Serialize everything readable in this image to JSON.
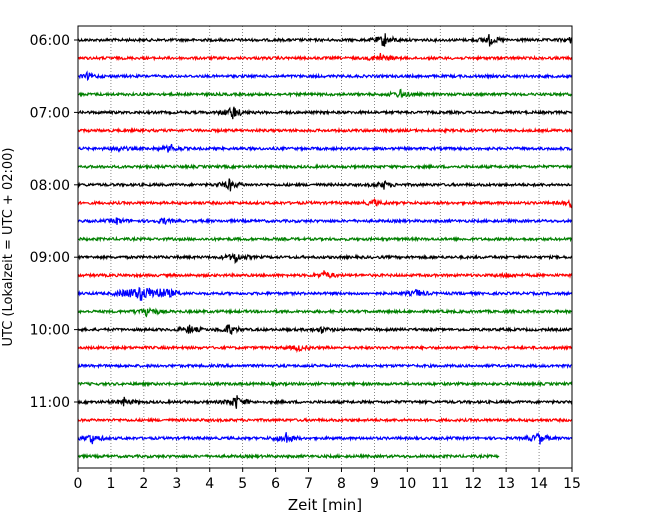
{
  "chart_data": {
    "type": "line",
    "title": "",
    "xlabel": "Zeit  [min]",
    "ylabel": "UTC (Lokalzeit = UTC + 02:00)",
    "xlim": [
      0,
      15
    ],
    "x_ticks": [
      "0",
      "1",
      "2",
      "3",
      "4",
      "5",
      "6",
      "7",
      "8",
      "9",
      "10",
      "11",
      "12",
      "13",
      "14",
      "15"
    ],
    "y_tick_labels": [
      "06:00",
      "07:00",
      "08:00",
      "09:00",
      "10:00",
      "11:00"
    ],
    "grid": "vertical dotted",
    "row_colors": [
      "#000000",
      "#ff0000",
      "#0000ff",
      "#008000"
    ],
    "trace_start_times": [
      "06:00",
      "06:15",
      "06:30",
      "06:45",
      "07:00",
      "07:15",
      "07:30",
      "07:45",
      "08:00",
      "08:15",
      "08:30",
      "08:45",
      "09:00",
      "09:15",
      "09:30",
      "09:45",
      "10:00",
      "10:15",
      "10:30",
      "10:45",
      "11:00",
      "11:15",
      "11:30",
      "11:45"
    ],
    "last_trace_end_min": 12.8,
    "events": [
      {
        "row": 0,
        "min": 9.3,
        "amp": 1.0
      },
      {
        "row": 0,
        "min": 12.5,
        "amp": 0.7
      },
      {
        "row": 0,
        "min": 15.0,
        "amp": 0.5
      },
      {
        "row": 1,
        "min": 9.2,
        "amp": 0.7
      },
      {
        "row": 2,
        "min": 0.3,
        "amp": 0.4
      },
      {
        "row": 3,
        "min": 9.8,
        "amp": 0.6
      },
      {
        "row": 4,
        "min": 4.7,
        "amp": 1.0
      },
      {
        "row": 6,
        "min": 1.2,
        "amp": 0.4
      },
      {
        "row": 6,
        "min": 2.8,
        "amp": 0.6
      },
      {
        "row": 8,
        "min": 4.6,
        "amp": 0.8
      },
      {
        "row": 8,
        "min": 9.3,
        "amp": 0.5
      },
      {
        "row": 9,
        "min": 9.0,
        "amp": 0.4
      },
      {
        "row": 9,
        "min": 15.0,
        "amp": 0.5
      },
      {
        "row": 10,
        "min": 1.2,
        "amp": 0.4
      },
      {
        "row": 10,
        "min": 2.6,
        "amp": 0.4
      },
      {
        "row": 12,
        "min": 4.8,
        "amp": 0.8
      },
      {
        "row": 13,
        "min": 7.5,
        "amp": 0.6
      },
      {
        "row": 13,
        "min": 13.0,
        "amp": 0.3
      },
      {
        "row": 14,
        "min": 1.9,
        "amp": 1.0
      },
      {
        "row": 14,
        "min": 10.3,
        "amp": 0.5
      },
      {
        "row": 15,
        "min": 2.1,
        "amp": 0.9
      },
      {
        "row": 16,
        "min": 3.4,
        "amp": 0.6
      },
      {
        "row": 16,
        "min": 4.6,
        "amp": 0.8
      },
      {
        "row": 16,
        "min": 7.4,
        "amp": 0.4
      },
      {
        "row": 17,
        "min": 6.7,
        "amp": 0.4
      },
      {
        "row": 20,
        "min": 1.4,
        "amp": 0.5
      },
      {
        "row": 20,
        "min": 4.8,
        "amp": 1.0
      },
      {
        "row": 22,
        "min": 0.4,
        "amp": 0.8
      },
      {
        "row": 22,
        "min": 6.3,
        "amp": 0.9
      },
      {
        "row": 22,
        "min": 14.0,
        "amp": 0.8
      }
    ]
  }
}
